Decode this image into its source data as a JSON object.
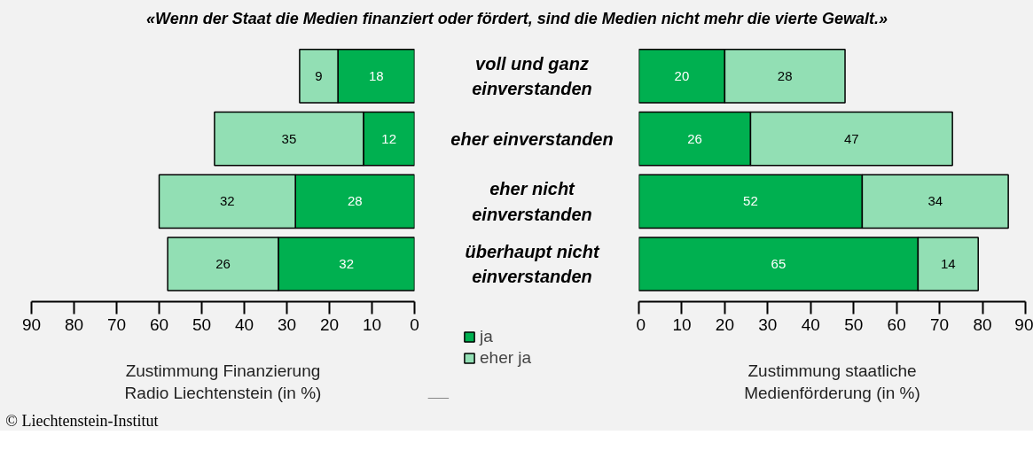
{
  "chart_data": [
    {
      "type": "bar",
      "orientation": "horizontal",
      "stacked": true,
      "title": "«Wenn der Staat die Medien finanziert oder fördert, sind die Medien nicht mehr die vierte Gewalt.»",
      "categories": [
        "voll und ganz einverstanden",
        "eher einverstanden",
        "eher nicht einverstanden",
        "überhaupt nicht einverstanden"
      ],
      "series": [
        {
          "name": "ja",
          "color": "#00b050",
          "values": [
            18,
            12,
            28,
            32
          ]
        },
        {
          "name": "eher ja",
          "color": "#92dfb4",
          "values": [
            9,
            35,
            32,
            26
          ]
        }
      ],
      "xlim": [
        90,
        0
      ],
      "xticks": [
        90,
        80,
        70,
        60,
        50,
        40,
        30,
        20,
        10,
        0
      ],
      "xlabel": "Zustimmung Finanzierung Radio Liechtenstein (in %)",
      "data_labels": true,
      "grid": false,
      "legend": "bottom right",
      "annotations": [
        "© Liechtenstein-Institut"
      ]
    },
    {
      "type": "bar",
      "orientation": "horizontal",
      "stacked": true,
      "categories": [
        null,
        null,
        null,
        null
      ],
      "series": [
        {
          "color": "#00b050",
          "values": [
            20,
            26,
            52,
            65
          ]
        },
        {
          "color": "#92dfb4",
          "values": [
            28,
            47,
            34,
            14
          ]
        }
      ],
      "xlim": [
        0,
        90
      ],
      "xticks": [
        0,
        10,
        20,
        30,
        40,
        50,
        60,
        70,
        80,
        90
      ],
      "xlabel": "Zustimmung staatliche Medienförderung (in %)",
      "data_labels": true,
      "grid": false
    }
  ]
}
